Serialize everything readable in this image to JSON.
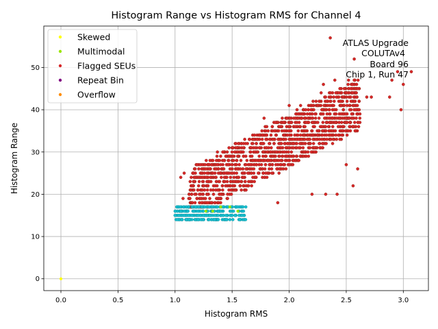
{
  "chart_data": {
    "type": "scatter",
    "title": "Histogram Range vs Histogram RMS for Channel 4",
    "xlabel": "Histogram RMS",
    "ylabel": "Histogram Range",
    "xlim": [
      -0.15,
      3.22
    ],
    "ylim": [
      -2.8,
      59.8
    ],
    "xticks": [
      0.0,
      0.5,
      1.0,
      1.5,
      2.0,
      2.5,
      3.0
    ],
    "xtick_labels": [
      "0.0",
      "0.5",
      "1.0",
      "1.5",
      "2.0",
      "2.5",
      "3.0"
    ],
    "yticks": [
      0,
      10,
      20,
      30,
      40,
      50
    ],
    "ytick_labels": [
      "0",
      "10",
      "20",
      "30",
      "40",
      "50"
    ],
    "grid": true,
    "legend_position": "upper-left",
    "annotation": [
      "ATLAS Upgrade",
      "COLUTAv4",
      "Board 96",
      "Chip 1, Run 47"
    ],
    "series": [
      {
        "name": "Skewed",
        "color": "#ffff00",
        "points": [
          [
            0.0,
            0.0
          ]
        ]
      },
      {
        "name": "Multimodal",
        "color": "#99e600",
        "points": [
          [
            1.27,
            16
          ],
          [
            1.33,
            16
          ],
          [
            1.4,
            17
          ],
          [
            1.48,
            17
          ],
          [
            1.55,
            16
          ]
        ]
      },
      {
        "name": "Flagged SEUs",
        "color": "#d62728",
        "note": "dense band between (1.05,18) and (3.1,49); extreme points listed",
        "points": [
          [
            1.05,
            24
          ],
          [
            1.08,
            25
          ],
          [
            1.07,
            19
          ],
          [
            1.2,
            21
          ],
          [
            1.28,
            25
          ],
          [
            1.4,
            27
          ],
          [
            1.6,
            32
          ],
          [
            1.78,
            38
          ],
          [
            1.9,
            18
          ],
          [
            2.0,
            41
          ],
          [
            2.1,
            41
          ],
          [
            2.2,
            20
          ],
          [
            2.25,
            41
          ],
          [
            2.28,
            44
          ],
          [
            2.3,
            46
          ],
          [
            2.32,
            20
          ],
          [
            2.36,
            57
          ],
          [
            2.4,
            47
          ],
          [
            2.42,
            20
          ],
          [
            2.5,
            27
          ],
          [
            2.52,
            47
          ],
          [
            2.56,
            22
          ],
          [
            2.57,
            52
          ],
          [
            2.6,
            26
          ],
          [
            2.62,
            39
          ],
          [
            2.68,
            43
          ],
          [
            2.72,
            43
          ],
          [
            2.88,
            43
          ],
          [
            2.9,
            47
          ],
          [
            2.95,
            49
          ],
          [
            2.98,
            40
          ],
          [
            3.0,
            46
          ],
          [
            3.07,
            49
          ]
        ]
      },
      {
        "name": "Repeat Bin",
        "color": "#800080",
        "points": []
      },
      {
        "name": "Overflow",
        "color": "#ff8c00",
        "points": []
      },
      {
        "name": "Low range cluster",
        "color": "#17becf",
        "in_legend": false,
        "points": [
          [
            1.0,
            15
          ],
          [
            1.02,
            14
          ],
          [
            1.05,
            16
          ],
          [
            1.08,
            15
          ],
          [
            1.1,
            14
          ],
          [
            1.15,
            15
          ],
          [
            1.2,
            16
          ],
          [
            1.25,
            15
          ],
          [
            1.3,
            14
          ],
          [
            1.35,
            15
          ],
          [
            1.4,
            16
          ],
          [
            1.45,
            14
          ],
          [
            1.5,
            15
          ],
          [
            1.55,
            17
          ],
          [
            1.6,
            16
          ],
          [
            1.62,
            17
          ]
        ]
      }
    ]
  }
}
